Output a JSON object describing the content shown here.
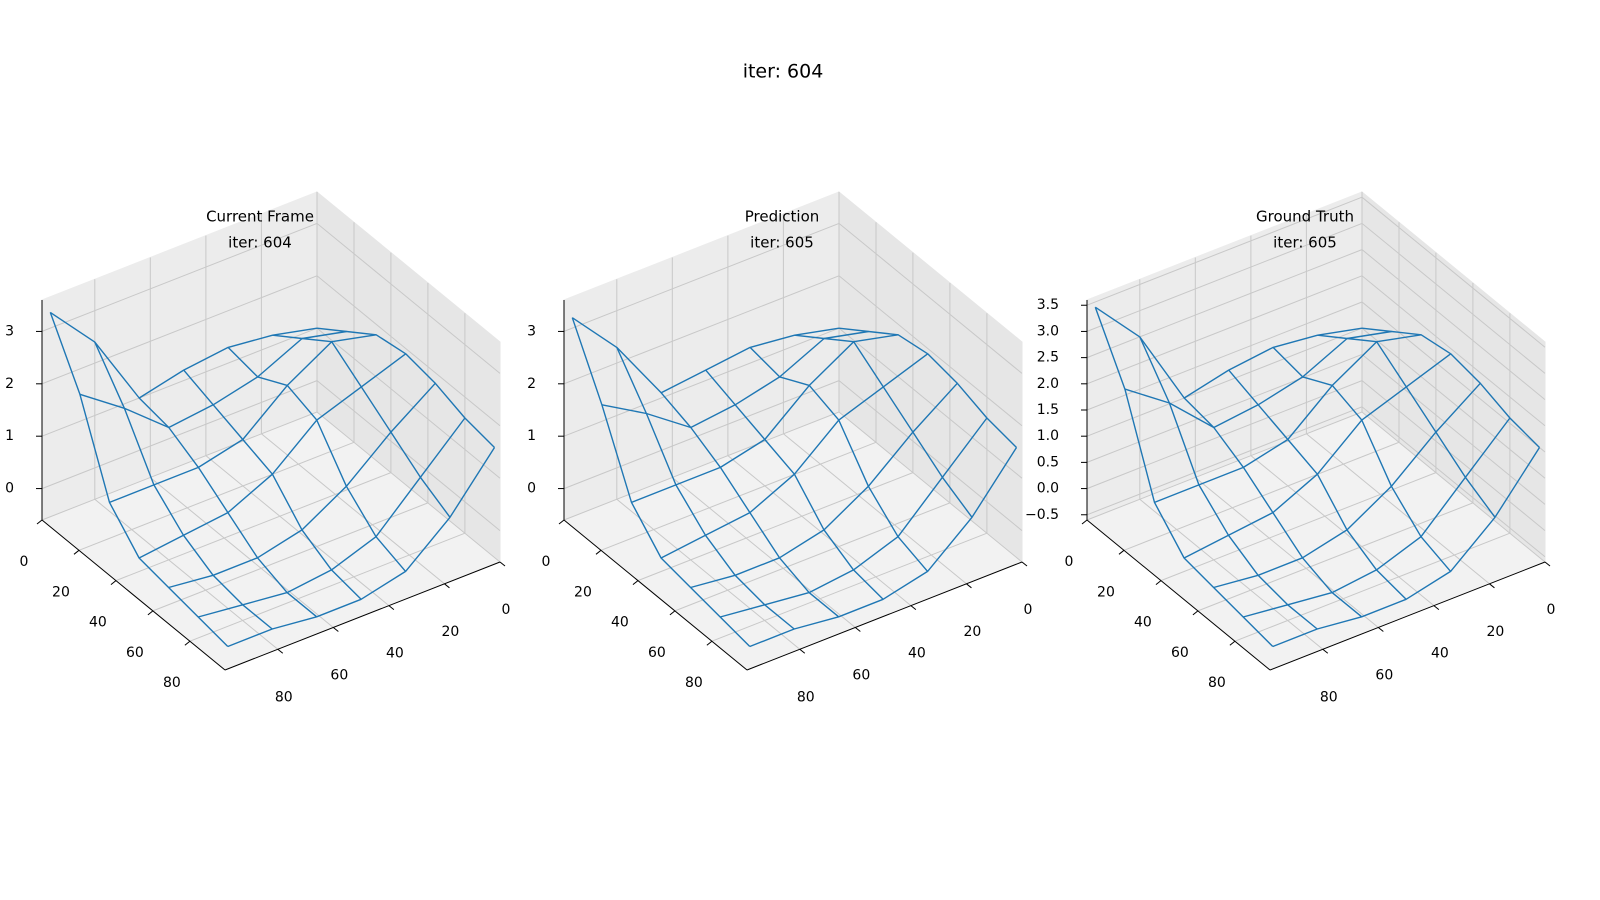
{
  "title": "iter: 604",
  "chart_data": [
    {
      "type": "wireframe",
      "title": "Current Frame",
      "subtitle": "iter: 604",
      "color": "#1f77b4",
      "x": [
        0,
        16,
        32,
        48,
        64,
        80,
        96
      ],
      "y": [
        0,
        16,
        32,
        48,
        64,
        80,
        96
      ],
      "z": [
        [
          1.0,
          1.2,
          1.3,
          1.2,
          1.0,
          2.4,
          3.3
        ],
        [
          1.4,
          1.6,
          1.2,
          1.0,
          0.9,
          1.6,
          2.2
        ],
        [
          1.8,
          2.0,
          1.5,
          0.8,
          0.6,
          0.6,
          0.6
        ],
        [
          1.9,
          1.6,
          1.3,
          0.6,
          0.2,
          0.1,
          0.0
        ],
        [
          1.8,
          1.2,
          0.5,
          0.0,
          -0.2,
          -0.2,
          -0.1
        ],
        [
          1.6,
          0.8,
          0.0,
          -0.3,
          -0.4,
          -0.3,
          -0.2
        ],
        [
          1.5,
          0.5,
          -0.2,
          -0.4,
          -0.4,
          -0.3,
          -0.3
        ]
      ],
      "xlim": [
        0,
        99
      ],
      "ylim": [
        0,
        99
      ],
      "zlim": [
        -0.6,
        3.6
      ],
      "xticks": [
        0,
        20,
        40,
        60,
        80
      ],
      "yticks": [
        0,
        20,
        40,
        60,
        80
      ],
      "zticks": [
        0,
        1,
        2,
        3
      ]
    },
    {
      "type": "wireframe",
      "title": "Prediction",
      "subtitle": "iter: 605",
      "color": "#1f77b4",
      "x": [
        0,
        16,
        32,
        48,
        64,
        80,
        96
      ],
      "y": [
        0,
        16,
        32,
        48,
        64,
        80,
        96
      ],
      "z": [
        [
          1.0,
          1.2,
          1.3,
          1.2,
          1.1,
          2.3,
          3.2
        ],
        [
          1.4,
          1.6,
          1.2,
          1.0,
          0.9,
          1.5,
          2.0
        ],
        [
          1.8,
          2.0,
          1.5,
          0.8,
          0.6,
          0.6,
          0.6
        ],
        [
          1.9,
          1.6,
          1.3,
          0.6,
          0.2,
          0.1,
          0.0
        ],
        [
          1.8,
          1.2,
          0.5,
          0.0,
          -0.2,
          -0.2,
          -0.1
        ],
        [
          1.6,
          0.8,
          0.0,
          -0.3,
          -0.4,
          -0.3,
          -0.2
        ],
        [
          1.5,
          0.5,
          -0.2,
          -0.4,
          -0.4,
          -0.3,
          -0.3
        ]
      ],
      "xlim": [
        0,
        99
      ],
      "ylim": [
        0,
        99
      ],
      "zlim": [
        -0.6,
        3.6
      ],
      "xticks": [
        0,
        20,
        40,
        60,
        80
      ],
      "yticks": [
        0,
        20,
        40,
        60,
        80
      ],
      "zticks": [
        0,
        1,
        2,
        3
      ]
    },
    {
      "type": "wireframe",
      "title": "Ground Truth",
      "subtitle": "iter: 605",
      "color": "#1f77b4",
      "x": [
        0,
        16,
        32,
        48,
        64,
        80,
        96
      ],
      "y": [
        0,
        16,
        32,
        48,
        64,
        80,
        96
      ],
      "z": [
        [
          1.0,
          1.2,
          1.3,
          1.2,
          1.0,
          2.5,
          3.4
        ],
        [
          1.4,
          1.6,
          1.2,
          1.0,
          0.9,
          1.7,
          2.3
        ],
        [
          1.8,
          2.0,
          1.5,
          0.8,
          0.6,
          0.6,
          0.6
        ],
        [
          1.9,
          1.6,
          1.3,
          0.6,
          0.2,
          0.1,
          0.0
        ],
        [
          1.8,
          1.2,
          0.5,
          0.0,
          -0.2,
          -0.2,
          -0.1
        ],
        [
          1.6,
          0.8,
          0.0,
          -0.3,
          -0.4,
          -0.3,
          -0.2
        ],
        [
          1.5,
          0.5,
          -0.2,
          -0.4,
          -0.4,
          -0.3,
          -0.3
        ]
      ],
      "xlim": [
        0,
        99
      ],
      "ylim": [
        0,
        99
      ],
      "zlim": [
        -0.6,
        3.6
      ],
      "xticks": [
        0,
        20,
        40,
        60,
        80
      ],
      "yticks": [
        0,
        20,
        40,
        60,
        80
      ],
      "zticks": [
        {
          "value": -0.5,
          "label": "−0.5"
        },
        {
          "value": 0,
          "label": "0.0"
        },
        0.5,
        {
          "value": 1,
          "label": "1.0"
        },
        1.5,
        {
          "value": 2,
          "label": "2.0"
        },
        2.5,
        {
          "value": 3,
          "label": "3.0"
        },
        3.5
      ]
    }
  ]
}
